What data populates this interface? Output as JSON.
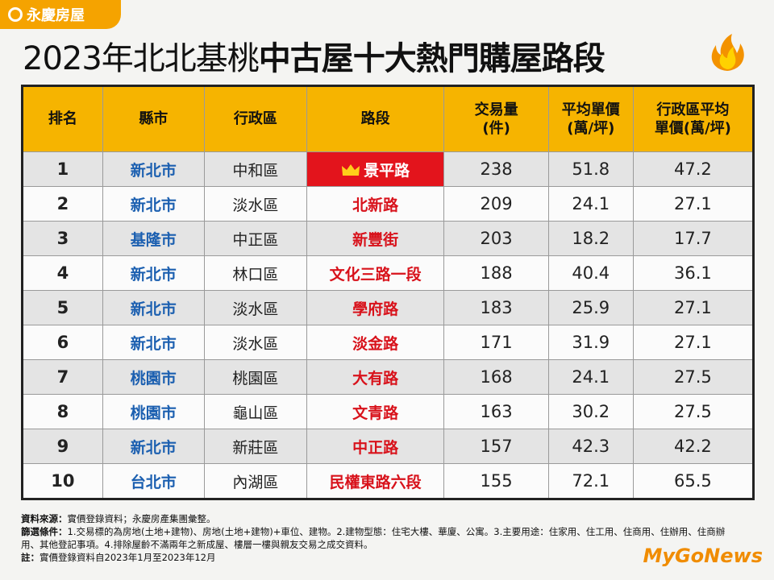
{
  "logo": "永慶房屋",
  "title": {
    "prefix": "2023年北北基桃",
    "main": "中古屋十大熱門購屋路段"
  },
  "table": {
    "header": [
      [
        "排名"
      ],
      [
        "縣市"
      ],
      [
        "行政區"
      ],
      [
        "路段"
      ],
      [
        "交易量",
        "(件)"
      ],
      [
        "平均單價",
        "(萬/坪)"
      ],
      [
        "行政區平均",
        "單價(萬/坪)"
      ]
    ],
    "rows": [
      [
        1,
        "新北市",
        "中和區",
        "景平路",
        238,
        51.8,
        47.2
      ],
      [
        2,
        "新北市",
        "淡水區",
        "北新路",
        209,
        24.1,
        27.1
      ],
      [
        3,
        "基隆市",
        "中正區",
        "新豐街",
        203,
        18.2,
        17.7
      ],
      [
        4,
        "新北市",
        "林口區",
        "文化三路一段",
        188,
        40.4,
        36.1
      ],
      [
        5,
        "新北市",
        "淡水區",
        "學府路",
        183,
        25.9,
        27.1
      ],
      [
        6,
        "新北市",
        "淡水區",
        "淡金路",
        171,
        31.9,
        27.1
      ],
      [
        7,
        "桃園市",
        "桃園區",
        "大有路",
        168,
        24.1,
        27.5
      ],
      [
        8,
        "桃園市",
        "龜山區",
        "文青路",
        163,
        30.2,
        27.5
      ],
      [
        9,
        "新北市",
        "新莊區",
        "中正路",
        157,
        42.3,
        42.2
      ],
      [
        10,
        "台北市",
        "內湖區",
        "民權東路六段",
        155,
        72.1,
        65.5
      ]
    ]
  },
  "notes": [
    {
      "label": "資料來源：",
      "text": "實價登錄資料；永慶房產集團彙整。"
    },
    {
      "label": "篩選條件：",
      "text": "1.交易標的為房地(土地+建物)、房地(土地+建物)+車位、建物。2.建物型態：住宅大樓、華廈、公寓。3.主要用途：住家用、住工用、住商用、住辦用、住商辦用、其他登記事項。4.排除屋齡不滿兩年之新成屋、樓層一樓與親友交易之成交資料。"
    },
    {
      "label": "註：",
      "text": "實價登錄資料自2023年1月至2023年12月"
    }
  ],
  "watermark": "MyGoNews"
}
